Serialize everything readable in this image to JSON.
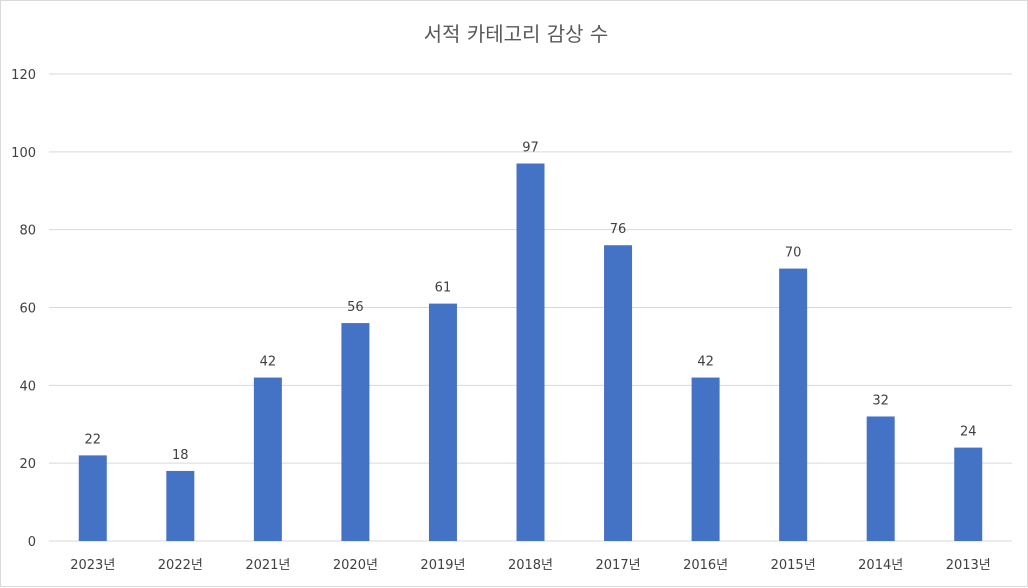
{
  "chart_data": {
    "type": "bar",
    "title": "서적 카테고리 감상 수",
    "categories": [
      "2023년",
      "2022년",
      "2021년",
      "2020년",
      "2019년",
      "2018년",
      "2017년",
      "2016년",
      "2015년",
      "2014년",
      "2013년"
    ],
    "values": [
      22,
      18,
      42,
      56,
      61,
      97,
      76,
      42,
      70,
      32,
      24
    ],
    "y_ticks": [
      "0",
      "20",
      "40",
      "60",
      "80",
      "100",
      "120"
    ],
    "ylim": [
      0,
      120
    ],
    "xlabel": "",
    "ylabel": "",
    "grid": true,
    "legend": "none",
    "data_labels": true,
    "bar_color": "#4472C4",
    "gridline_color": "#D9D9D9"
  }
}
